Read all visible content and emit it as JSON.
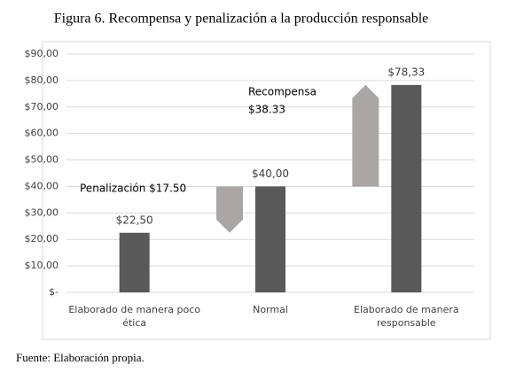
{
  "chart_data": {
    "type": "bar",
    "title": "Figura 6. Recompensa y penalización a la producción responsable",
    "source": "Fuente: Elaboración propia.",
    "categories": [
      "Elaborado de manera poco ética",
      "Normal",
      "Elaborado de manera responsable"
    ],
    "values": [
      22.5,
      40,
      78.33
    ],
    "value_labels": [
      "$22,50",
      "$40,00",
      "$78,33"
    ],
    "color": "#595959",
    "ylim": [
      0,
      90
    ],
    "yticks": [
      {
        "value": 0,
        "label": "$-"
      },
      {
        "value": 10,
        "label": "$10,00"
      },
      {
        "value": 20,
        "label": "$20,00"
      },
      {
        "value": 30,
        "label": "$30,00"
      },
      {
        "value": 40,
        "label": "$40,00"
      },
      {
        "value": 50,
        "label": "$50,00"
      },
      {
        "value": 60,
        "label": "$60,00"
      },
      {
        "value": 70,
        "label": "$70,00"
      },
      {
        "value": 80,
        "label": "$80,00"
      },
      {
        "value": 90,
        "label": "$90,00"
      }
    ],
    "grid": true,
    "arrows": [
      {
        "text": [
          "Penalización $17.50"
        ],
        "from": 40,
        "to": 22.5,
        "color": "#aaa6a6"
      },
      {
        "text": [
          "Recompensa",
          "$38.33"
        ],
        "from": 40,
        "to": 78.33,
        "color": "#aaa6a6"
      }
    ]
  }
}
